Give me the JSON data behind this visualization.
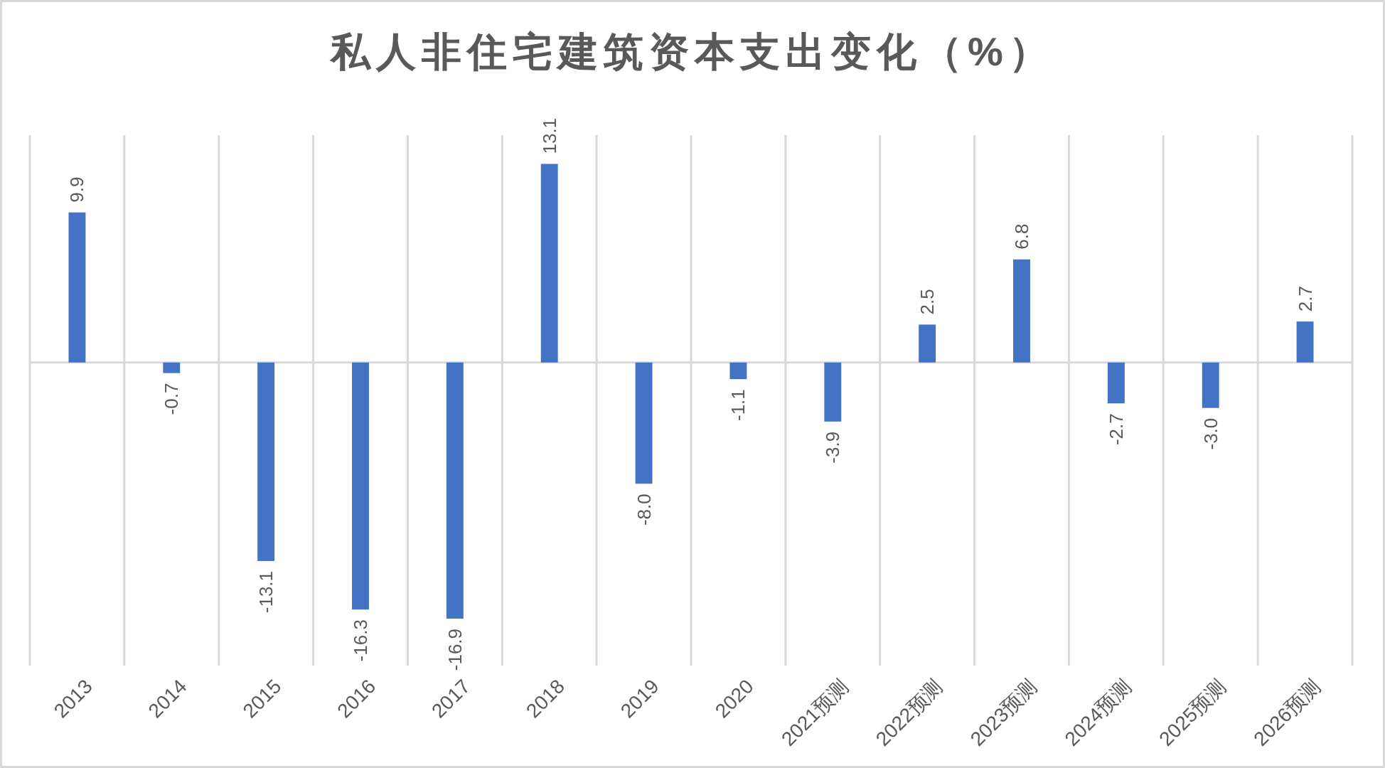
{
  "chart_data": {
    "type": "bar",
    "title": "私人非住宅建筑资本支出变化（%）",
    "categories": [
      "2013",
      "2014",
      "2015",
      "2016",
      "2017",
      "2018",
      "2019",
      "2020",
      "2021预测",
      "2022预测",
      "2023预测",
      "2024预测",
      "2025预测",
      "2026预测"
    ],
    "values": [
      9.9,
      -0.7,
      -13.1,
      -16.3,
      -16.9,
      13.1,
      -8.0,
      -1.1,
      -3.9,
      2.5,
      6.8,
      -2.7,
      -3.0,
      2.7
    ],
    "value_labels": [
      "9.9",
      "-0.7",
      "-13.1",
      "-16.3",
      "-16.9",
      "13.1",
      "-8.0",
      "-1.1",
      "-3.9",
      "2.5",
      "6.8",
      "-2.7",
      "-3.0",
      "2.7"
    ],
    "color": "#4472c4",
    "ylim": [
      -20,
      15
    ],
    "grid": "x",
    "tick_labels": "x"
  }
}
